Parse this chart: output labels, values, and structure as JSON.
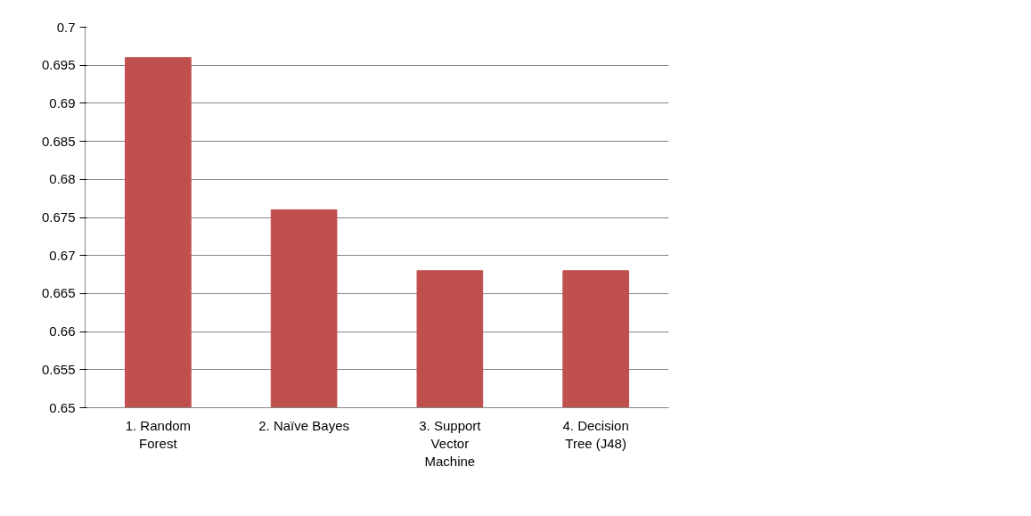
{
  "chart_data": {
    "type": "bar",
    "categories": [
      "1. Random\nForest",
      "2. Naïve Bayes",
      "3. Support\nVector\nMachine",
      "4. Decision\nTree (J48)"
    ],
    "series": [
      {
        "color": "#c0504d",
        "values": [
          0.696,
          0.676,
          0.668,
          0.668
        ]
      }
    ],
    "ylim": [
      0.65,
      0.7
    ],
    "yticks": [
      0.65,
      0.655,
      0.66,
      0.665,
      0.67,
      0.675,
      0.68,
      0.685,
      0.69,
      0.695,
      0.7
    ],
    "grid": "y"
  }
}
